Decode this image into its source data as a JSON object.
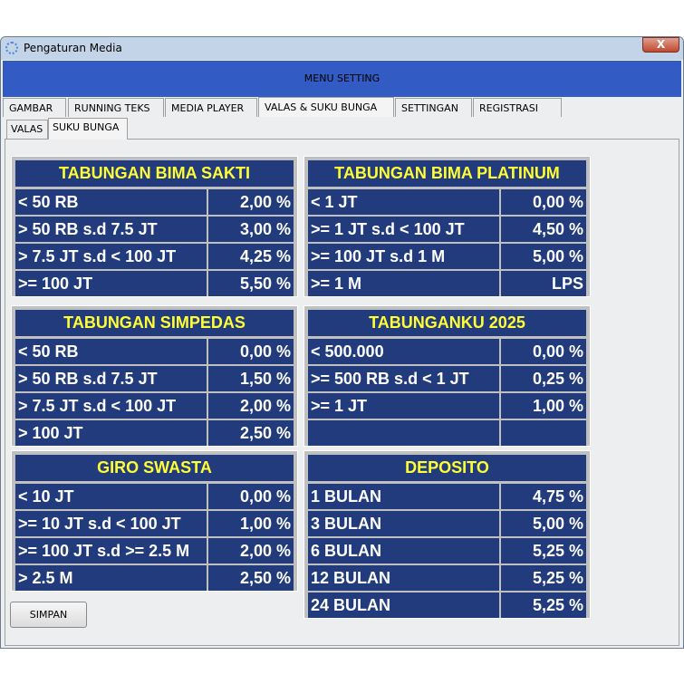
{
  "window": {
    "title": "Pengaturan Media",
    "close": "X"
  },
  "header": {
    "title": "MENU SETTING"
  },
  "tabs": [
    "GAMBAR",
    "RUNNING TEKS",
    "MEDIA PLAYER",
    "VALAS & SUKU BUNGA",
    "SETTINGAN",
    "REGISTRASI"
  ],
  "active_tab": "VALAS & SUKU BUNGA",
  "subtabs": [
    "VALAS",
    "SUKU BUNGA"
  ],
  "active_subtab": "SUKU BUNGA",
  "panels": [
    {
      "title": "TABUNGAN BIMA SAKTI",
      "rows": [
        [
          "< 50 RB",
          "2,00 %"
        ],
        [
          "> 50 RB s.d 7.5 JT",
          "3,00 %"
        ],
        [
          "> 7.5 JT s.d < 100 JT",
          "4,25 %"
        ],
        [
          ">= 100 JT",
          "5,50 %"
        ]
      ]
    },
    {
      "title": "TABUNGAN BIMA PLATINUM",
      "rows": [
        [
          "< 1 JT",
          "0,00 %"
        ],
        [
          ">= 1 JT s.d < 100 JT",
          "4,50 %"
        ],
        [
          ">= 100 JT s.d 1 M",
          "5,00 %"
        ],
        [
          ">= 1 M",
          "LPS"
        ]
      ]
    },
    {
      "title": "TABUNGAN SIMPEDAS",
      "rows": [
        [
          "< 50 RB",
          "0,00 %"
        ],
        [
          "> 50 RB s.d 7.5 JT",
          "1,50 %"
        ],
        [
          "> 7.5 JT s.d < 100 JT",
          "2,00 %"
        ],
        [
          "> 100 JT",
          "2,50 %"
        ]
      ]
    },
    {
      "title": "TABUNGANKU 2025",
      "rows": [
        [
          "< 500.000",
          "0,00 %"
        ],
        [
          ">= 500 RB s.d < 1 JT",
          "0,25 %"
        ],
        [
          ">= 1 JT",
          "1,00 %"
        ],
        [
          "",
          ""
        ]
      ]
    },
    {
      "title": "GIRO SWASTA",
      "rows": [
        [
          "< 10 JT",
          "0,00 %"
        ],
        [
          ">= 10 JT s.d < 100 JT",
          "1,00 %"
        ],
        [
          ">= 100 JT s.d >= 2.5 M",
          "2,00 %"
        ],
        [
          "> 2.5 M",
          "2,50 %"
        ]
      ]
    },
    {
      "title": "DEPOSITO",
      "rows": [
        [
          "1 BULAN",
          "4,75 %"
        ],
        [
          "3 BULAN",
          "5,00 %"
        ],
        [
          "6 BULAN",
          "5,25 %"
        ],
        [
          "12 BULAN",
          "5,25 %"
        ],
        [
          "24 BULAN",
          "5,25 %"
        ]
      ]
    }
  ],
  "buttons": {
    "save": "SIMPAN"
  }
}
